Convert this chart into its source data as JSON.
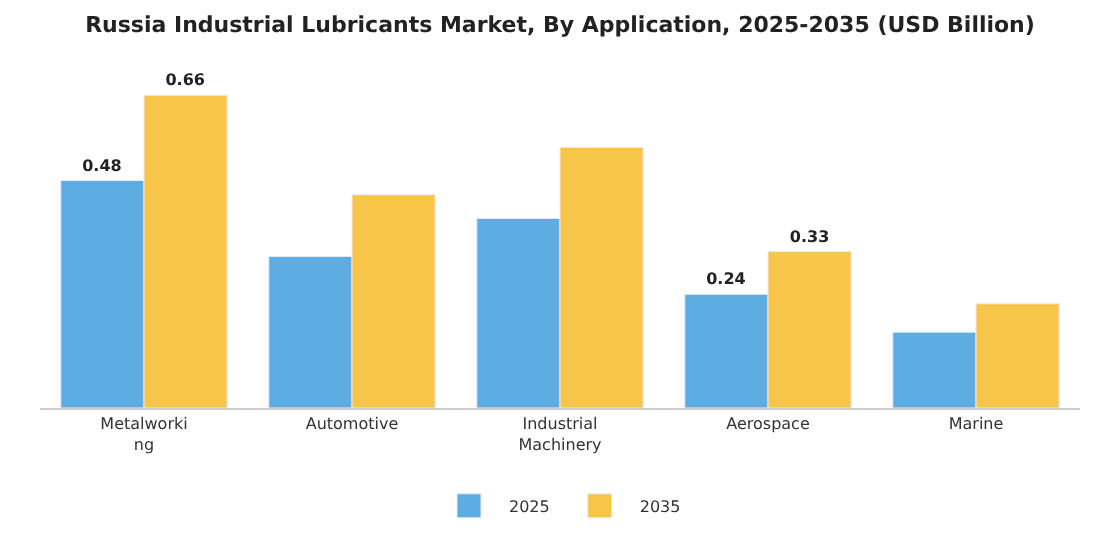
{
  "chart_data": {
    "type": "bar",
    "title": "Russia Industrial Lubricants Market, By Application, 2025-2035 (USD Billion)",
    "categories": [
      "Metalworking",
      "Automotive",
      "Industrial Machinery",
      "Aerospace",
      "Marine"
    ],
    "series": [
      {
        "name": "2025",
        "color": "#5dade2",
        "values": [
          0.48,
          0.32,
          0.4,
          0.24,
          0.16
        ],
        "value_labels": [
          "0.48",
          null,
          null,
          "0.24",
          null
        ]
      },
      {
        "name": "2035",
        "color": "#f7c548",
        "values": [
          0.66,
          0.45,
          0.55,
          0.33,
          0.22
        ],
        "value_labels": [
          "0.66",
          null,
          null,
          "0.33",
          null
        ]
      }
    ],
    "legend": "bottom"
  }
}
